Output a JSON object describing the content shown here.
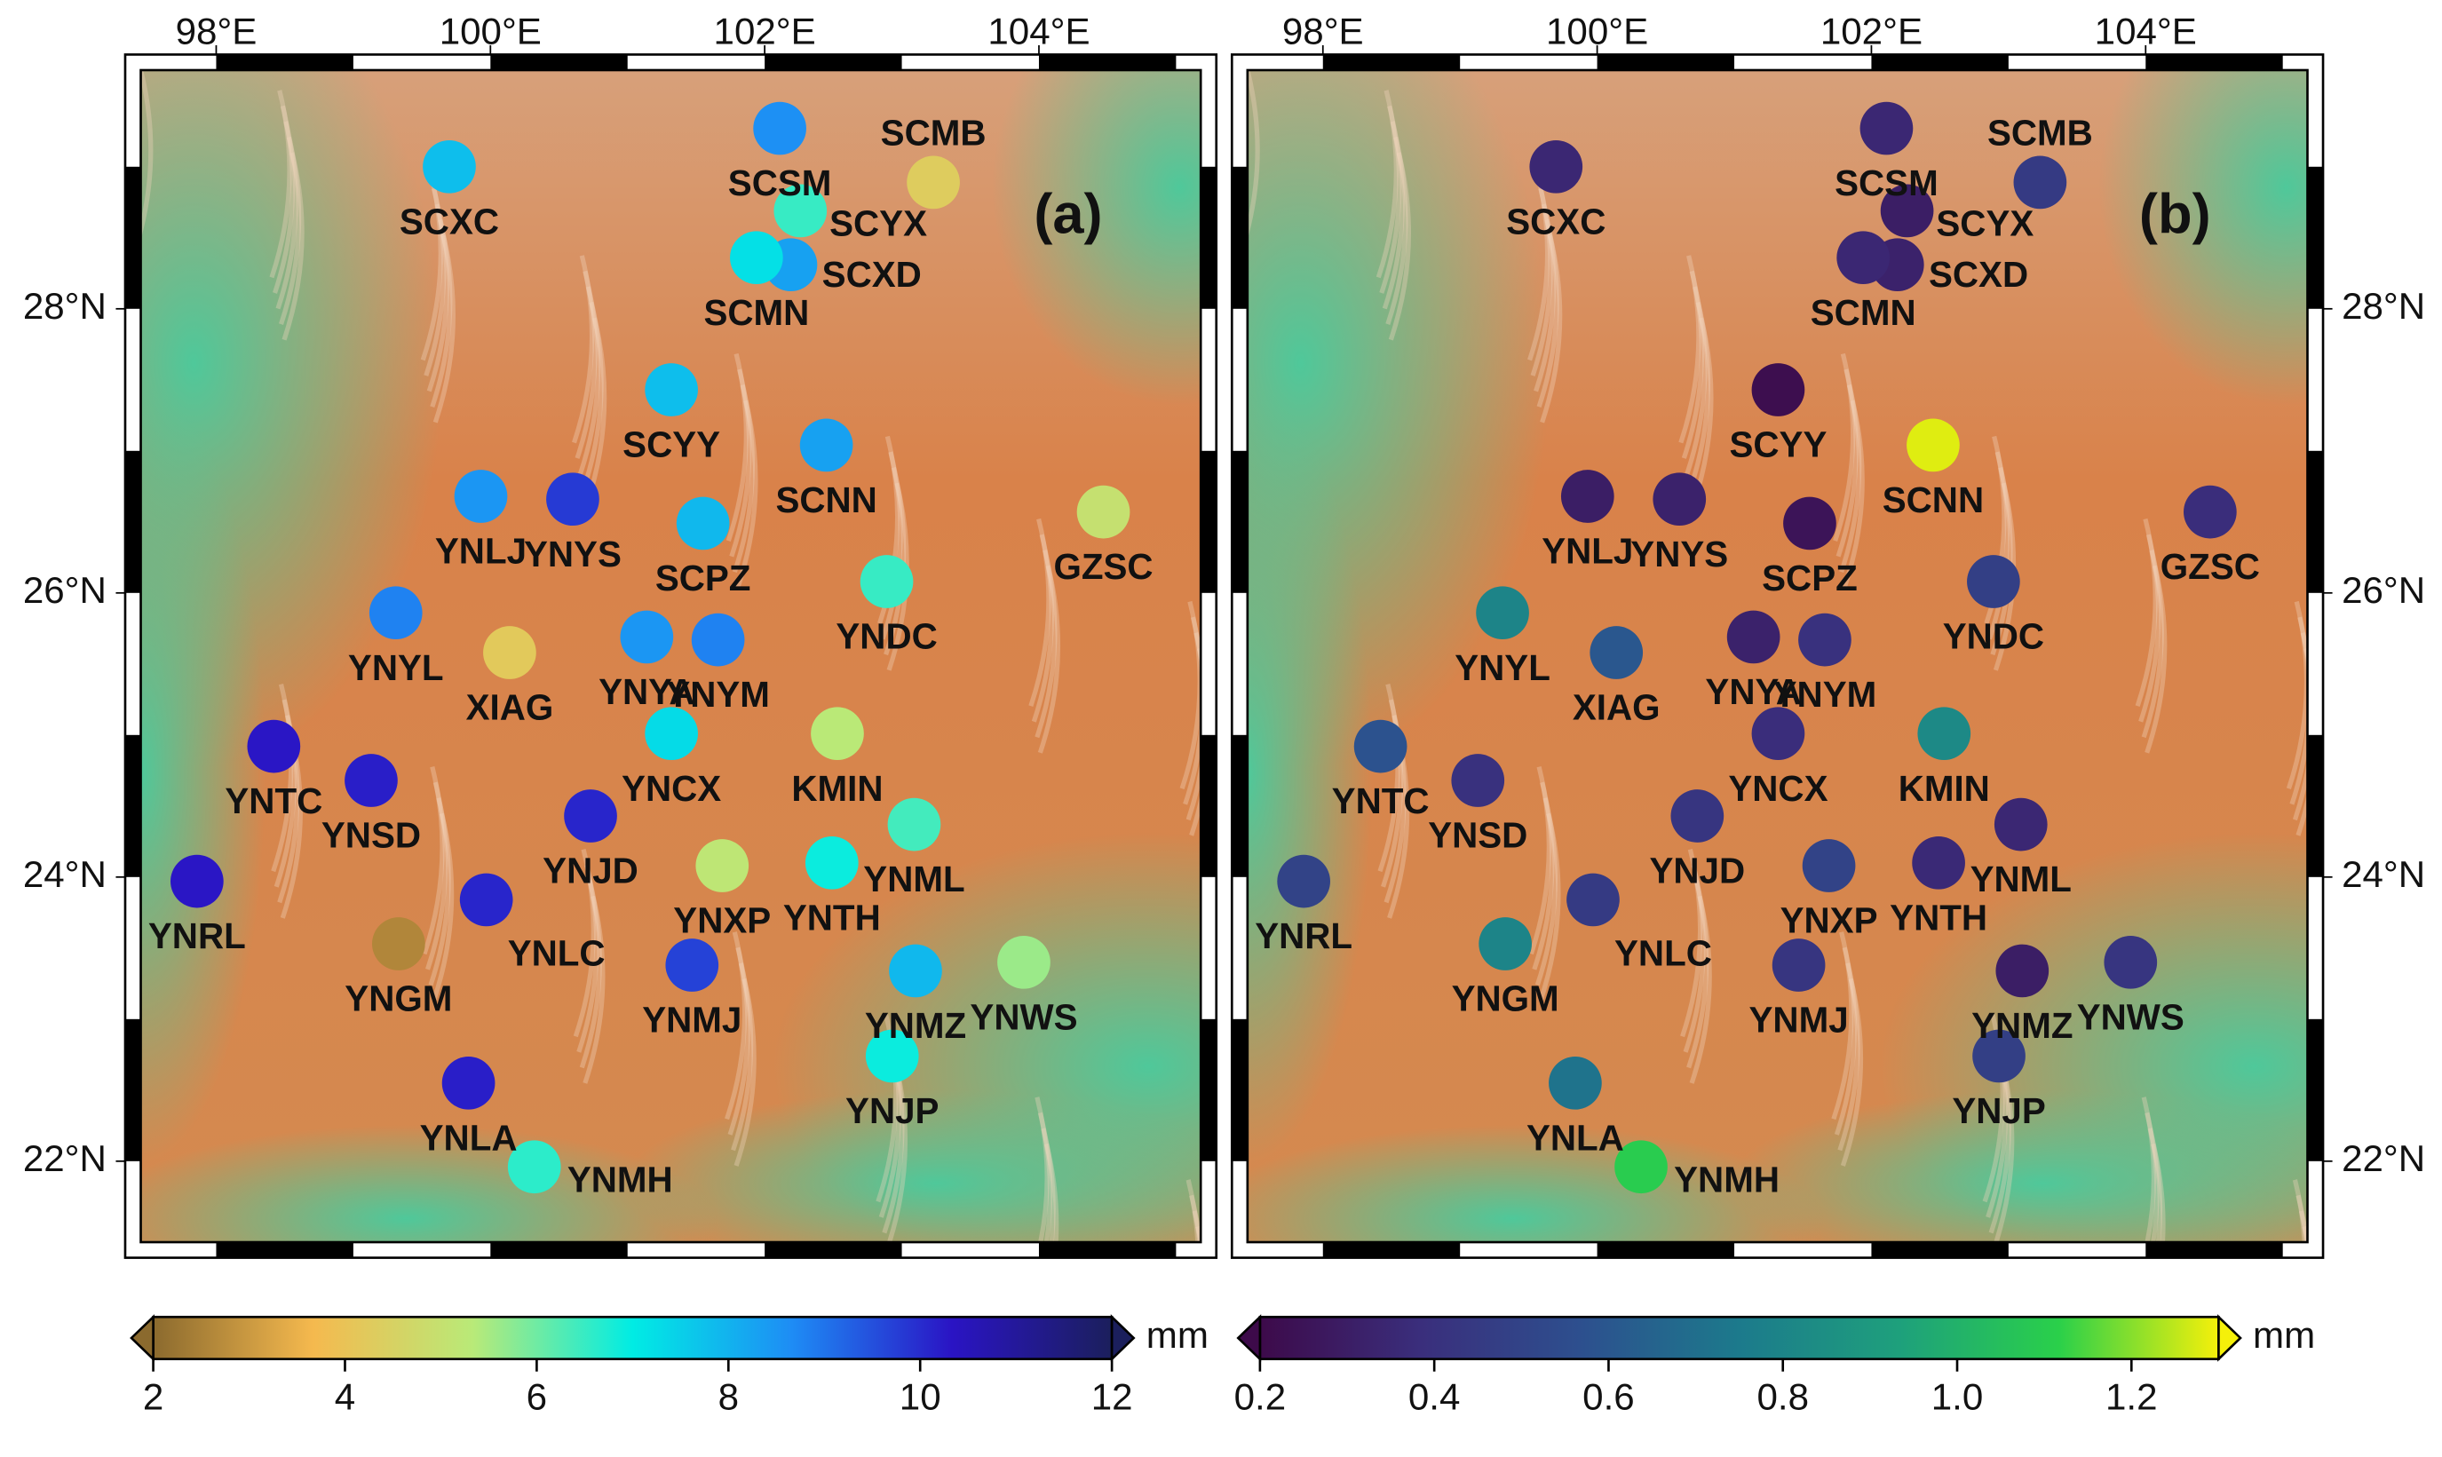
{
  "xlim": [
    97.45,
    105.18
  ],
  "ylim": [
    21.43,
    29.68
  ],
  "longitude_ticks": [
    {
      "value": 98,
      "label": "98°E"
    },
    {
      "value": 100,
      "label": "100°E"
    },
    {
      "value": 102,
      "label": "102°E"
    },
    {
      "value": 104,
      "label": "104°E"
    }
  ],
  "latitude_ticks": [
    {
      "value": 22,
      "label": "22°N"
    },
    {
      "value": 24,
      "label": "24°N"
    },
    {
      "value": 26,
      "label": "26°N"
    },
    {
      "value": 28,
      "label": "28°N"
    }
  ],
  "stations": [
    {
      "name": "SCXC",
      "lon": 99.7,
      "lat": 29.0
    },
    {
      "name": "SCSM",
      "lon": 102.11,
      "lat": 29.27
    },
    {
      "name": "SCMB",
      "lon": 103.23,
      "lat": 28.89
    },
    {
      "name": "SCYX",
      "lon": 102.26,
      "lat": 28.69
    },
    {
      "name": "SCXD",
      "lon": 102.19,
      "lat": 28.31
    },
    {
      "name": "SCMN",
      "lon": 101.94,
      "lat": 28.36
    },
    {
      "name": "SCYY",
      "lon": 101.32,
      "lat": 27.43
    },
    {
      "name": "SCNN",
      "lon": 102.45,
      "lat": 27.04
    },
    {
      "name": "GZSC",
      "lon": 104.47,
      "lat": 26.57
    },
    {
      "name": "YNLJ",
      "lon": 99.93,
      "lat": 26.68
    },
    {
      "name": "YNYS",
      "lon": 100.6,
      "lat": 26.66
    },
    {
      "name": "SCPZ",
      "lon": 101.55,
      "lat": 26.49
    },
    {
      "name": "YNDC",
      "lon": 102.89,
      "lat": 26.08
    },
    {
      "name": "YNYL",
      "lon": 99.31,
      "lat": 25.86
    },
    {
      "name": "XIAG",
      "lon": 100.14,
      "lat": 25.58
    },
    {
      "name": "YNYA",
      "lon": 101.14,
      "lat": 25.69
    },
    {
      "name": "YNYM",
      "lon": 101.66,
      "lat": 25.67
    },
    {
      "name": "YNCX",
      "lon": 101.32,
      "lat": 25.01
    },
    {
      "name": "KMIN",
      "lon": 102.53,
      "lat": 25.01
    },
    {
      "name": "YNTC",
      "lon": 98.42,
      "lat": 24.92
    },
    {
      "name": "YNSD",
      "lon": 99.13,
      "lat": 24.68
    },
    {
      "name": "YNJD",
      "lon": 100.73,
      "lat": 24.43
    },
    {
      "name": "YNML",
      "lon": 103.09,
      "lat": 24.37
    },
    {
      "name": "YNXP",
      "lon": 101.69,
      "lat": 24.08
    },
    {
      "name": "YNTH",
      "lon": 102.49,
      "lat": 24.1
    },
    {
      "name": "YNRL",
      "lon": 97.86,
      "lat": 23.97
    },
    {
      "name": "YNLC",
      "lon": 99.97,
      "lat": 23.84
    },
    {
      "name": "YNGM",
      "lon": 99.33,
      "lat": 23.53
    },
    {
      "name": "YNMJ",
      "lon": 101.47,
      "lat": 23.38
    },
    {
      "name": "YNMZ",
      "lon": 103.1,
      "lat": 23.34
    },
    {
      "name": "YNWS",
      "lon": 103.89,
      "lat": 23.4
    },
    {
      "name": "YNJP",
      "lon": 102.93,
      "lat": 22.74
    },
    {
      "name": "YNLA",
      "lon": 99.84,
      "lat": 22.55
    },
    {
      "name": "YNMH",
      "lon": 100.32,
      "lat": 21.96
    }
  ],
  "panels": [
    {
      "label": "(a)",
      "values": [
        7.8,
        8.6,
        4.3,
        6.5,
        8.3,
        7.2,
        7.8,
        8.3,
        5.0,
        8.5,
        9.8,
        7.9,
        6.5,
        8.8,
        4.2,
        8.5,
        8.8,
        7.3,
        5.3,
        10.3,
        10.2,
        10.1,
        6.4,
        5.2,
        6.9,
        10.3,
        10.1,
        2.6,
        9.7,
        7.9,
        5.6,
        6.9,
        10.2,
        6.6
      ],
      "colorbar": {
        "range": [
          2,
          12
        ],
        "ticks": [
          2,
          4,
          6,
          8,
          10,
          12
        ],
        "unit": "mm",
        "colormap": [
          "#8b6a2e",
          "#f5b94e",
          "#b9ea78",
          "#00ece4",
          "#1e8cf5",
          "#2a14c4",
          "#1b1f5c"
        ]
      }
    },
    {
      "label": "(b)",
      "values": [
        0.35,
        0.35,
        0.45,
        0.3,
        0.32,
        0.35,
        0.22,
        1.28,
        0.38,
        0.3,
        0.32,
        0.25,
        0.48,
        0.8,
        0.6,
        0.32,
        0.4,
        0.38,
        0.82,
        0.58,
        0.4,
        0.42,
        0.35,
        0.5,
        0.36,
        0.5,
        0.45,
        0.8,
        0.42,
        0.3,
        0.42,
        0.48,
        0.72,
        1.1
      ],
      "colorbar": {
        "range": [
          0.2,
          1.3
        ],
        "ticks": [
          0.2,
          0.4,
          0.6,
          0.8,
          {
            "value": 1.0,
            "label": "1.0"
          },
          1.2
        ],
        "unit": "mm",
        "colormap": [
          "#3d0a4a",
          "#3a2e7c",
          "#2d4f8e",
          "#1c7a8c",
          "#1ea07c",
          "#2ad04a",
          "#f5f00a"
        ]
      }
    }
  ]
}
